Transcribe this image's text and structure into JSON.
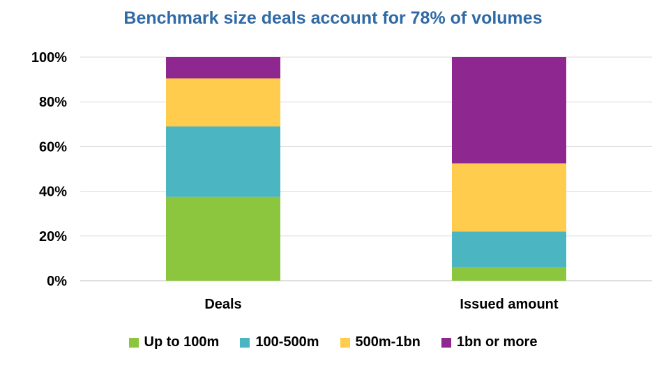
{
  "chart_data": {
    "type": "bar",
    "stacked": true,
    "title": "Benchmark size deals account for 78% of volumes",
    "categories": [
      "Deals",
      "Issued amount"
    ],
    "series": [
      {
        "name": "Up to 100m",
        "color": "#8cc63f",
        "values": [
          37.5,
          6
        ]
      },
      {
        "name": "100-500m",
        "color": "#4bb5c1",
        "values": [
          31.5,
          16
        ]
      },
      {
        "name": "500m-1bn",
        "color": "#ffcc4d",
        "values": [
          21.5,
          30.5
        ]
      },
      {
        "name": "1bn or more",
        "color": "#8e278f",
        "values": [
          9.5,
          47.5
        ]
      }
    ],
    "ylim": [
      0,
      100
    ],
    "yticks": [
      "0%",
      "20%",
      "40%",
      "60%",
      "80%",
      "100%"
    ],
    "ytick_values": [
      0,
      20,
      40,
      60,
      80,
      100
    ],
    "grid": true,
    "legend": "bottom",
    "title_color": "#2f6aa6"
  }
}
